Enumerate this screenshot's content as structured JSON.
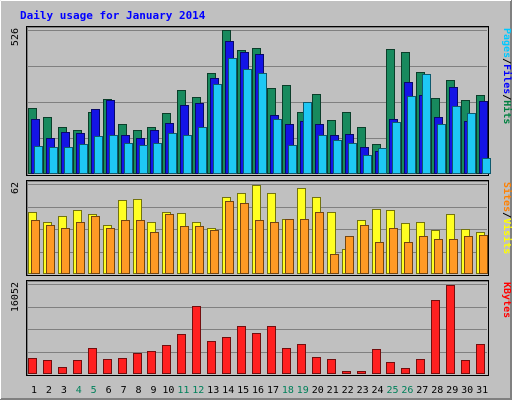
{
  "chart_data": {
    "type": "bar",
    "title": "Daily usage for January 2014",
    "days": [
      "1",
      "2",
      "3",
      "4",
      "5",
      "6",
      "7",
      "8",
      "9",
      "10",
      "11",
      "12",
      "13",
      "14",
      "15",
      "16",
      "17",
      "18",
      "19",
      "20",
      "21",
      "22",
      "23",
      "24",
      "25",
      "26",
      "27",
      "28",
      "29",
      "30",
      "31"
    ],
    "weekend_days": [
      "4",
      "5",
      "11",
      "12",
      "18",
      "19",
      "25",
      "26"
    ],
    "panels": [
      {
        "id": "requests",
        "max_label": "526",
        "ylim": [
          0,
          526
        ],
        "legend": [
          {
            "text": "Pages",
            "color": "#00c8ff"
          },
          {
            "text": "/",
            "color": "#000000"
          },
          {
            "text": "Files",
            "color": "#0000ff"
          },
          {
            "text": "/",
            "color": "#000000"
          },
          {
            "text": "Hits",
            "color": "#008040"
          }
        ],
        "series": [
          {
            "name": "Hits",
            "color": "#188a5e",
            "values": [
              241,
              208,
              173,
              161,
              228,
              274,
              181,
              161,
              173,
              223,
              307,
              280,
              370,
              526,
              452,
              459,
              315,
              325,
              227,
              293,
              196,
              225,
              170,
              110,
              455,
              445,
              372,
              277,
              342,
              270,
              290
            ]
          },
          {
            "name": "Files",
            "color": "#1414e6",
            "values": [
              200,
              132,
              155,
              148,
              238,
              272,
              144,
              132,
              161,
              185,
              253,
              258,
              351,
              485,
              445,
              437,
              215,
              183,
              194,
              182,
              141,
              145,
              100,
              85,
              201,
              335,
              290,
              208,
              317,
              193,
              265
            ]
          },
          {
            "name": "Pages",
            "color": "#1ec8f5",
            "values": [
              103,
              100,
              97,
              110,
              137,
              141,
              113,
              107,
              114,
              150,
              142,
              172,
              328,
              423,
              383,
              370,
              200,
              105,
              262,
              142,
              126,
              115,
              71,
              95,
              190,
              285,
              367,
              182,
              250,
              222,
              60
            ]
          }
        ]
      },
      {
        "id": "visitors",
        "max_label": "62",
        "ylim": [
          0,
          62
        ],
        "legend": [
          {
            "text": "Sites",
            "color": "#ff8000"
          },
          {
            "text": "/",
            "color": "#000000"
          },
          {
            "text": "Visits",
            "color": "#ffff00"
          }
        ],
        "series": [
          {
            "name": "Visits",
            "color": "#ffff22",
            "values": [
              43,
              36,
              40,
              44,
              41,
              34,
              51,
              52,
              36,
              43,
              42,
              36,
              32,
              53,
              56,
              61,
              56,
              38,
              59,
              53,
              43,
              17,
              37,
              45,
              44,
              35,
              36,
              30,
              41,
              31,
              29
            ]
          },
          {
            "name": "Sites",
            "color": "#ff9a25",
            "values": [
              37,
              34,
              32,
              36,
              40,
              32,
              37,
              37,
              29,
              41,
              33,
              33,
              30,
              50,
              49,
              37,
              36,
              38,
              38,
              43,
              14,
              26,
              34,
              22,
              32,
              22,
              26,
              24,
              24,
              26,
              27
            ]
          }
        ]
      },
      {
        "id": "kbytes",
        "max_label": "16052",
        "ylim": [
          0,
          16052
        ],
        "legend": [
          {
            "text": "KBytes",
            "color": "#ff0000"
          }
        ],
        "series": [
          {
            "name": "KBytes",
            "color": "#ff2020",
            "values": [
              2800,
              2500,
              1200,
              2500,
              4700,
              2700,
              2900,
              3800,
              4100,
              5100,
              7100,
              12100,
              5900,
              6600,
              8500,
              7300,
              8500,
              4700,
              5400,
              3000,
              2600,
              600,
              600,
              4500,
              2200,
              1100,
              2600,
              13200,
              15800,
              2500,
              5300
            ]
          }
        ]
      }
    ]
  }
}
